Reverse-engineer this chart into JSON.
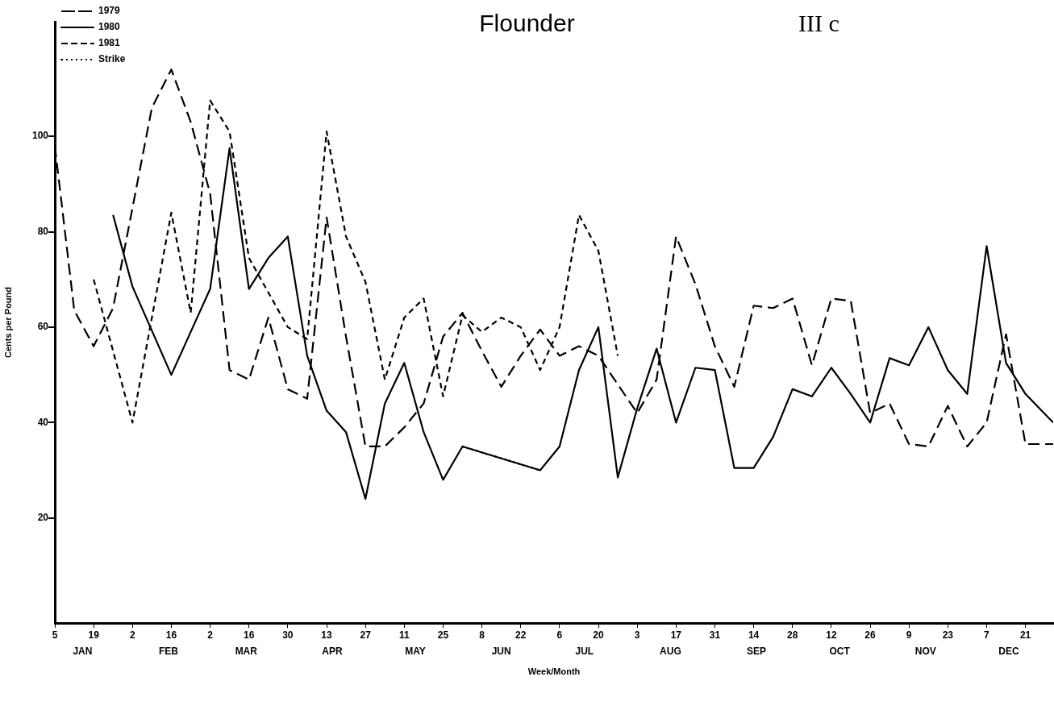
{
  "chart_data": {
    "type": "line",
    "title": "Flounder",
    "subtitle": "III c",
    "xlabel": "Week/Month",
    "ylabel": "Cents per Pound",
    "xlim": [
      "--01-05",
      "--12-31"
    ],
    "ylim": [
      -2,
      124
    ],
    "xticks": [
      {
        "value": "--01-05",
        "label": "5"
      },
      {
        "value": "--01-19",
        "label": "19"
      },
      {
        "value": "--02-02",
        "label": "2"
      },
      {
        "value": "--02-16",
        "label": "16"
      },
      {
        "value": "--03-02",
        "label": "2"
      },
      {
        "value": "--03-16",
        "label": "16"
      },
      {
        "value": "--03-30",
        "label": "30"
      },
      {
        "value": "--04-13",
        "label": "13"
      },
      {
        "value": "--04-27",
        "label": "27"
      },
      {
        "value": "--05-11",
        "label": "11"
      },
      {
        "value": "--05-25",
        "label": "25"
      },
      {
        "value": "--06-08",
        "label": "8"
      },
      {
        "value": "--06-22",
        "label": "22"
      },
      {
        "value": "--07-06",
        "label": "6"
      },
      {
        "value": "--07-20",
        "label": "20"
      },
      {
        "value": "--08-03",
        "label": "3"
      },
      {
        "value": "--08-17",
        "label": "17"
      },
      {
        "value": "--08-31",
        "label": "31"
      },
      {
        "value": "--09-14",
        "label": "14"
      },
      {
        "value": "--09-28",
        "label": "28"
      },
      {
        "value": "--10-12",
        "label": "12"
      },
      {
        "value": "--10-26",
        "label": "26"
      },
      {
        "value": "--11-09",
        "label": "9"
      },
      {
        "value": "--11-23",
        "label": "23"
      },
      {
        "value": "--12-07",
        "label": "7"
      },
      {
        "value": "--12-21",
        "label": "21"
      }
    ],
    "annotations": [
      "JAN",
      "FEB",
      "MAR",
      "APR",
      "MAY",
      "JUN",
      "JUL",
      "AUG",
      "SEP",
      "OCT",
      "NOV",
      "DEC"
    ],
    "yticks": [
      20,
      40,
      60,
      80,
      100
    ],
    "grid": false,
    "legend": "top left",
    "marker": "none",
    "series": [
      {
        "name": "1979",
        "color": "#000000",
        "line_style": "dashed",
        "x": [
          "--01-05",
          "--01-12",
          "--01-19",
          "--01-26",
          "--02-02",
          "--02-09",
          "--02-16",
          "--02-23",
          "--03-02",
          "--03-09",
          "--03-16",
          "--03-23",
          "--03-30",
          "--04-06",
          "--04-13",
          "--04-20",
          "--04-27",
          "--05-04",
          "--05-11",
          "--05-18",
          "--05-25",
          "--06-01",
          "--06-08",
          "--06-15",
          "--06-22",
          "--06-29",
          "--07-06",
          "--07-13",
          "--07-20",
          "--07-27",
          "--08-03",
          "--08-10",
          "--08-17",
          "--08-24",
          "--08-31",
          "--09-07",
          "--09-14",
          "--09-21",
          "--09-28",
          "--10-05",
          "--10-12",
          "--10-19",
          "--10-26",
          "--11-02",
          "--11-09",
          "--11-16",
          "--11-23",
          "--11-30",
          "--12-07",
          "--12-14",
          "--12-21",
          "--12-31"
        ],
        "values": [
          98,
          63.5,
          56,
          64,
          85,
          106,
          114,
          103,
          88,
          51,
          49,
          62,
          47,
          45,
          83,
          58,
          35,
          35,
          39,
          44,
          58,
          63,
          55,
          47.5,
          54,
          59.5,
          54,
          56,
          54,
          48,
          42,
          49,
          79,
          69,
          56,
          47.5,
          64.5,
          64,
          66,
          52,
          66,
          65.5,
          42,
          44,
          35.5,
          35,
          43.5,
          35,
          40,
          58.5,
          35.5,
          35.5
        ]
      },
      {
        "name": "1980",
        "color": "#000000",
        "line_style": "solid",
        "x": [
          "--01-26",
          "--02-02",
          "--02-16",
          "--03-02",
          "--03-09",
          "--03-16",
          "--03-23",
          "--03-30",
          "--04-06",
          "--04-13",
          "--04-20",
          "--04-27",
          "--05-04",
          "--05-11",
          "--05-18",
          "--05-25",
          "--06-01",
          "--06-29",
          "--07-06",
          "--07-13",
          "--07-20",
          "--07-27",
          "--08-03",
          "--08-10",
          "--08-17",
          "--08-24",
          "--08-31",
          "--09-07",
          "--09-14",
          "--09-21",
          "--09-28",
          "--10-05",
          "--10-12",
          "--10-19",
          "--10-26",
          "--11-02",
          "--11-09",
          "--11-16",
          "--11-23",
          "--11-30",
          "--12-07",
          "--12-14",
          "--12-21",
          "--12-31"
        ],
        "values": [
          83.5,
          68.5,
          50,
          68,
          97.5,
          68,
          74.5,
          79,
          54,
          42.5,
          38,
          24,
          44,
          52.5,
          38,
          28,
          35,
          30,
          35,
          51,
          60,
          28.5,
          43,
          55.5,
          40,
          51.5,
          51,
          30.5,
          30.5,
          37,
          47,
          45.5,
          51.5,
          46,
          40,
          53.5,
          52,
          60,
          51,
          46,
          77,
          52.5,
          46,
          40
        ]
      },
      {
        "name": "1981",
        "color": "#000000",
        "line_style": "dashed",
        "x": [
          "--01-19",
          "--02-02",
          "--02-16",
          "--02-23",
          "--03-02",
          "--03-09",
          "--03-16",
          "--03-30",
          "--04-06",
          "--04-13",
          "--04-20",
          "--04-27",
          "--05-04",
          "--05-11",
          "--05-18",
          "--05-25",
          "--06-01",
          "--06-08",
          "--06-15",
          "--06-22",
          "--06-29",
          "--07-06",
          "--07-13",
          "--07-20",
          "--07-27"
        ],
        "values": [
          70,
          40,
          84,
          63,
          107.5,
          101,
          74.5,
          60,
          57.5,
          101,
          79,
          69.5,
          49,
          62,
          66,
          45.5,
          62.5,
          59,
          62,
          60,
          51,
          60,
          83.5,
          76,
          54
        ]
      },
      {
        "name": "Strike",
        "color": "#000000",
        "line_style": "dotted",
        "x": [
          "--06-01",
          "--06-29"
        ],
        "values": [
          35,
          30
        ]
      }
    ]
  }
}
